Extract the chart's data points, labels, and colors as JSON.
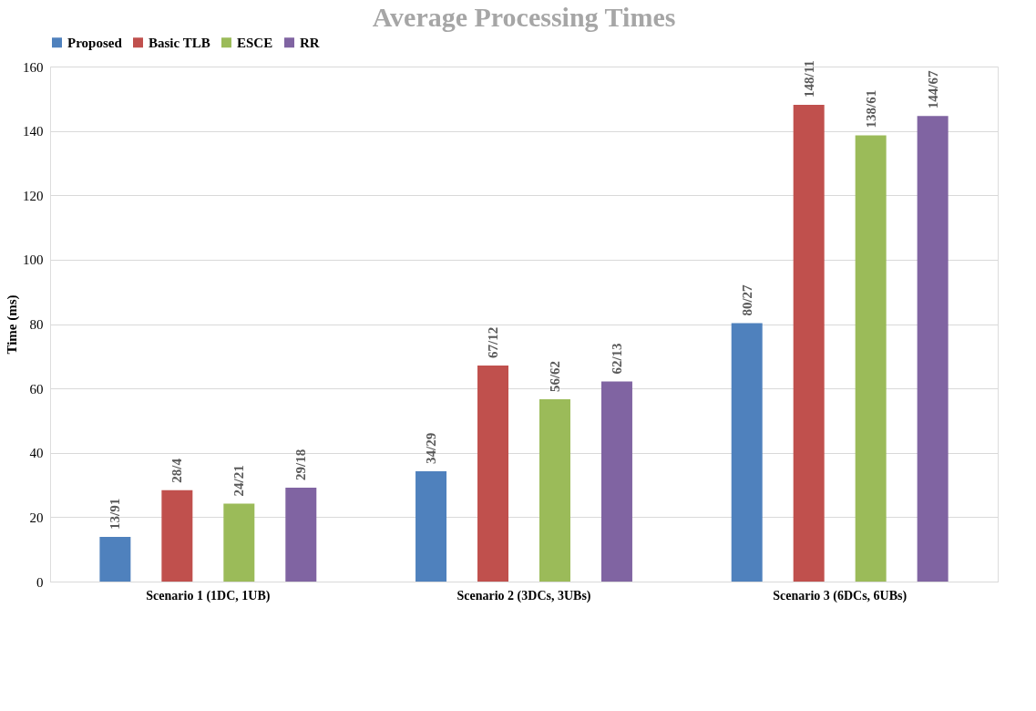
{
  "chart_data": {
    "type": "bar",
    "title": "Average Processing Times",
    "ylabel": "Time (ms)",
    "categories": [
      "Scenario 1 (1DC, 1UB)",
      "Scenario 2 (3DCs, 3UBs)",
      "Scenario 3 (6DCs, 6UBs)"
    ],
    "series": [
      {
        "name": "Proposed",
        "color": "#4f81bd",
        "values": [
          13.91,
          34.29,
          80.27
        ],
        "value_labels": [
          "13/91",
          "34/29",
          "80/27"
        ]
      },
      {
        "name": "Basic TLB",
        "color": "#c0504d",
        "values": [
          28.4,
          67.12,
          148.11
        ],
        "value_labels": [
          "28/4",
          "67/12",
          "148/11"
        ]
      },
      {
        "name": "ESCE",
        "color": "#9bbb59",
        "values": [
          24.21,
          56.62,
          138.61
        ],
        "value_labels": [
          "24/21",
          "56/62",
          "138/61"
        ]
      },
      {
        "name": "RR",
        "color": "#8064a2",
        "values": [
          29.18,
          62.13,
          144.67
        ],
        "value_labels": [
          "29/18",
          "62/13",
          "144/67"
        ]
      }
    ],
    "ylim": [
      0,
      160
    ],
    "yticks": [
      0,
      20,
      40,
      60,
      80,
      100,
      120,
      140,
      160
    ],
    "grid": "y",
    "legend": "top"
  }
}
